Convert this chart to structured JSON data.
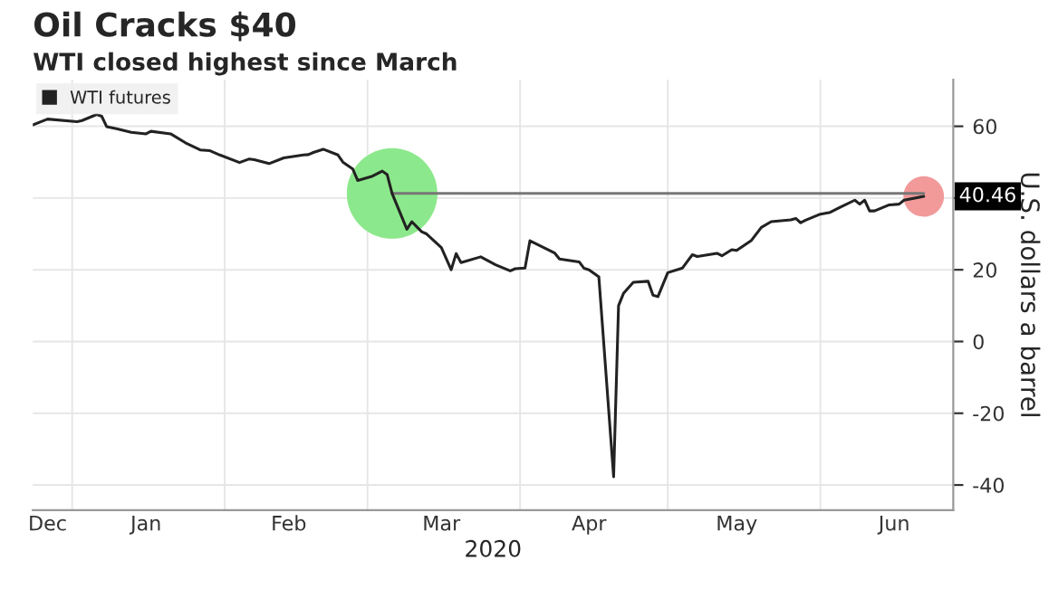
{
  "chart_data": {
    "type": "line",
    "title": "Oil Cracks $40",
    "subtitle": "WTI closed highest since March",
    "xlabel": "2020",
    "ylabel": "U.S. dollars a barrel",
    "xlim": [
      "2019-12-24",
      "2020-06-28"
    ],
    "xticks": [
      {
        "value": "2020-01-01",
        "label": null
      },
      {
        "value": "2020-02-01",
        "label": null
      },
      {
        "value": "2020-03-01",
        "label": null
      },
      {
        "value": "2020-04-01",
        "label": null
      },
      {
        "value": "2020-05-01",
        "label": null
      },
      {
        "value": "2020-06-01",
        "label": null
      },
      {
        "value": "2019-12-27",
        "label": "Dec"
      },
      {
        "value": "2020-01-16",
        "label": "Jan"
      },
      {
        "value": "2020-02-14",
        "label": "Feb"
      },
      {
        "value": "2020-03-16",
        "label": "Mar"
      },
      {
        "value": "2020-04-15",
        "label": "Apr"
      },
      {
        "value": "2020-05-15",
        "label": "May"
      },
      {
        "value": "2020-06-16",
        "label": "Jun"
      }
    ],
    "ylim": [
      -47,
      73
    ],
    "yticks": [
      -40,
      -20,
      0,
      20,
      {
        "value": 40,
        "label": null
      },
      60
    ],
    "grid": true,
    "legend": "top left",
    "annotations": [
      {
        "text": "40.46",
        "x": "2020-06-22",
        "y": 40.46
      }
    ],
    "series": [
      {
        "name": "WTI futures",
        "color": "#222222",
        "x": [
          "2019-12-24",
          "2019-12-27",
          "2020-01-02",
          "2020-01-03",
          "2020-01-06",
          "2020-01-07",
          "2020-01-08",
          "2020-01-10",
          "2020-01-13",
          "2020-01-16",
          "2020-01-17",
          "2020-01-21",
          "2020-01-24",
          "2020-01-27",
          "2020-01-29",
          "2020-01-31",
          "2020-02-04",
          "2020-02-06",
          "2020-02-07",
          "2020-02-10",
          "2020-02-13",
          "2020-02-17",
          "2020-02-18",
          "2020-02-19",
          "2020-02-21",
          "2020-02-24",
          "2020-02-25",
          "2020-02-27",
          "2020-02-28",
          "2020-03-02",
          "2020-03-04",
          "2020-03-05",
          "2020-03-06",
          "2020-03-09",
          "2020-03-10",
          "2020-03-11",
          "2020-03-12",
          "2020-03-13",
          "2020-03-16",
          "2020-03-18",
          "2020-03-19",
          "2020-03-20",
          "2020-03-24",
          "2020-03-27",
          "2020-03-30",
          "2020-03-31",
          "2020-04-02",
          "2020-04-03",
          "2020-04-07",
          "2020-04-08",
          "2020-04-09",
          "2020-04-13",
          "2020-04-14",
          "2020-04-15",
          "2020-04-17",
          "2020-04-20",
          "2020-04-21",
          "2020-04-22",
          "2020-04-24",
          "2020-04-27",
          "2020-04-28",
          "2020-04-29",
          "2020-05-01",
          "2020-05-04",
          "2020-05-06",
          "2020-05-07",
          "2020-05-11",
          "2020-05-12",
          "2020-05-14",
          "2020-05-15",
          "2020-05-18",
          "2020-05-20",
          "2020-05-22",
          "2020-05-26",
          "2020-05-27",
          "2020-05-28",
          "2020-05-29",
          "2020-06-01",
          "2020-06-03",
          "2020-06-05",
          "2020-06-08",
          "2020-06-09",
          "2020-06-10",
          "2020-06-11",
          "2020-06-12",
          "2020-06-15",
          "2020-06-17",
          "2020-06-18",
          "2020-06-22"
        ],
        "values": [
          60.4,
          62.0,
          61.3,
          61.6,
          63.3,
          62.8,
          59.9,
          59.3,
          58.3,
          57.9,
          58.6,
          57.9,
          55.4,
          53.4,
          53.2,
          52.0,
          49.9,
          50.9,
          50.7,
          49.6,
          51.2,
          52.0,
          52.1,
          52.7,
          53.6,
          52.0,
          50.0,
          48.1,
          44.9,
          46.1,
          47.5,
          46.5,
          41.28,
          31.3,
          33.4,
          32.0,
          30.6,
          30.0,
          26.2,
          20.0,
          24.5,
          22.0,
          23.6,
          21.4,
          19.7,
          20.3,
          20.5,
          28.1,
          25.4,
          24.7,
          23.0,
          22.2,
          20.4,
          20.0,
          18.0,
          -37.7,
          10.0,
          13.4,
          16.5,
          16.8,
          12.9,
          12.5,
          19.2,
          20.5,
          24.2,
          23.7,
          24.6,
          23.9,
          25.6,
          25.4,
          28.2,
          31.8,
          33.4,
          33.9,
          34.3,
          33.1,
          33.8,
          35.5,
          36.0,
          37.4,
          39.4,
          38.3,
          39.4,
          36.4,
          36.4,
          38.1,
          38.3,
          39.4,
          40.46
        ]
      },
      {
        "type": "line",
        "color": "#777777",
        "x": [
          "2020-03-06",
          "2020-06-22"
        ],
        "values": [
          41.28,
          41.28
        ]
      },
      {
        "type": "bubble",
        "x": [
          "2020-03-06",
          "2020-06-22"
        ],
        "values": [
          41.28,
          40.46
        ],
        "sizes": [
          1,
          0.2
        ],
        "colors": [
          "#8ce88c",
          "#f29a9a"
        ]
      }
    ]
  }
}
